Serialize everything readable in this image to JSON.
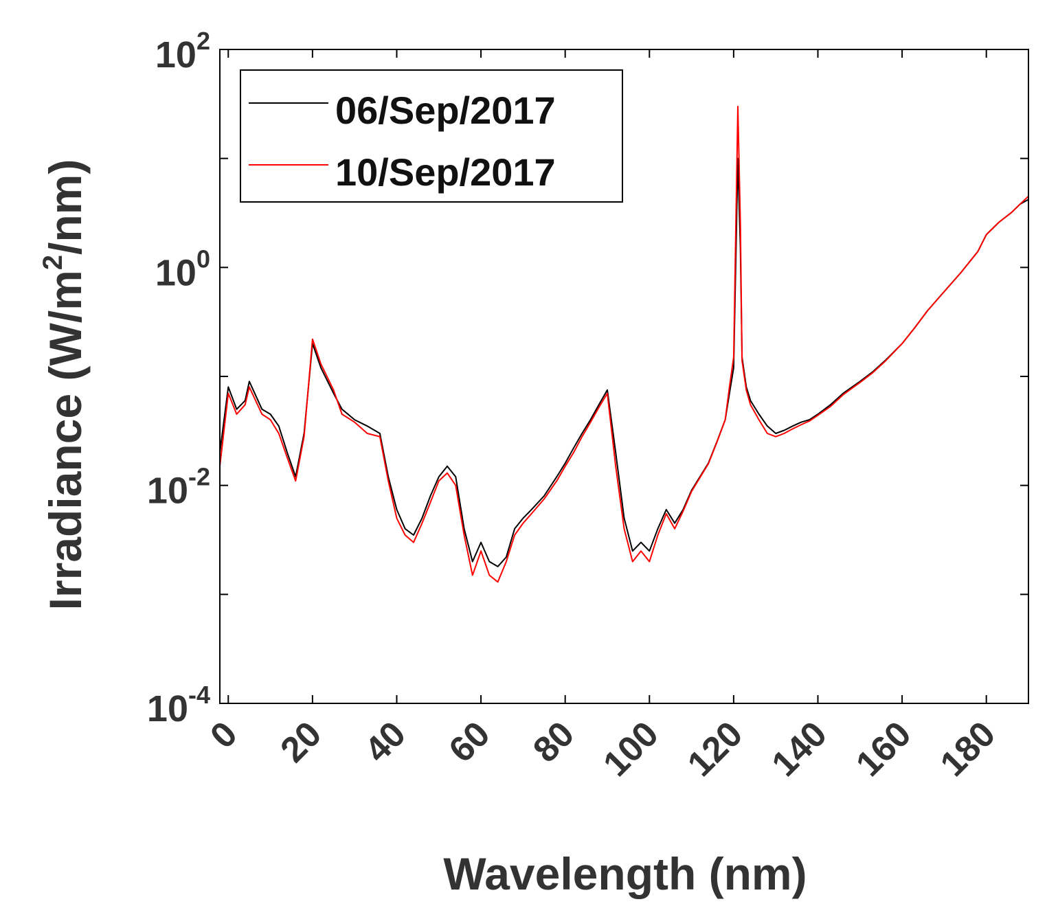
{
  "chart_data": {
    "type": "line",
    "title": "",
    "xlabel": "Wavelength (nm)",
    "ylabel_parts": {
      "pre": "Irradiance (W/m",
      "sup": "2",
      "post": "/nm)"
    },
    "xlim": [
      -2,
      190
    ],
    "ylim_exp": [
      -4,
      2
    ],
    "y_scale": "log",
    "xticks": [
      0,
      20,
      40,
      60,
      80,
      100,
      120,
      140,
      160,
      180
    ],
    "yticks": [
      {
        "exp": -4,
        "base": "10",
        "sup": "-4"
      },
      {
        "exp": -2,
        "base": "10",
        "sup": "-2"
      },
      {
        "exp": 0,
        "base": "10",
        "sup": "0"
      },
      {
        "exp": 2,
        "base": "10",
        "sup": "2"
      }
    ],
    "legend_position": "top-left",
    "series": [
      {
        "name": "06/Sep/2017",
        "color": "#000000",
        "x": [
          -2,
          0,
          2,
          4,
          5,
          8,
          10,
          12,
          14,
          16,
          18,
          20,
          22,
          25,
          27,
          30,
          33,
          36,
          38,
          40,
          42,
          44,
          46,
          48,
          50,
          52,
          54,
          56,
          58,
          60,
          62,
          64,
          66,
          68,
          70,
          72,
          75,
          78,
          80,
          82,
          84,
          86,
          88,
          90,
          92,
          94,
          96,
          98,
          100,
          102,
          104,
          106,
          108,
          110,
          112,
          114,
          116,
          118,
          119,
          120,
          121,
          121.6,
          122,
          123,
          124,
          126,
          128,
          130,
          132,
          134,
          136,
          138,
          140,
          143,
          146,
          150,
          153,
          156,
          160,
          163,
          166,
          170,
          174,
          178,
          180,
          183,
          186,
          188,
          190
        ],
        "y": [
          0.02,
          0.08,
          0.05,
          0.06,
          0.09,
          0.05,
          0.045,
          0.035,
          0.02,
          0.012,
          0.03,
          0.2,
          0.12,
          0.07,
          0.05,
          0.04,
          0.035,
          0.03,
          0.012,
          0.006,
          0.004,
          0.0035,
          0.005,
          0.008,
          0.012,
          0.015,
          0.012,
          0.004,
          0.002,
          0.003,
          0.002,
          0.0018,
          0.0022,
          0.004,
          0.005,
          0.006,
          0.008,
          0.012,
          0.016,
          0.022,
          0.03,
          0.04,
          0.055,
          0.075,
          0.02,
          0.005,
          0.0025,
          0.003,
          0.0025,
          0.004,
          0.006,
          0.0045,
          0.006,
          0.009,
          0.012,
          0.016,
          0.025,
          0.04,
          0.07,
          0.12,
          10,
          1.5,
          0.15,
          0.08,
          0.06,
          0.045,
          0.035,
          0.03,
          0.032,
          0.035,
          0.038,
          0.04,
          0.045,
          0.055,
          0.07,
          0.09,
          0.11,
          0.14,
          0.2,
          0.28,
          0.4,
          0.6,
          0.9,
          1.4,
          2.0,
          2.6,
          3.2,
          3.8,
          4.2
        ]
      },
      {
        "name": "10/Sep/2017",
        "color": "#ff0000",
        "x": [
          -2,
          0,
          2,
          4,
          5,
          8,
          10,
          12,
          14,
          16,
          18,
          20,
          22,
          25,
          27,
          30,
          33,
          36,
          38,
          40,
          42,
          44,
          46,
          48,
          50,
          52,
          54,
          56,
          58,
          60,
          62,
          64,
          66,
          68,
          70,
          72,
          75,
          78,
          80,
          82,
          84,
          86,
          88,
          90,
          92,
          94,
          96,
          98,
          100,
          102,
          104,
          106,
          108,
          110,
          112,
          114,
          116,
          118,
          119,
          120,
          121,
          121.6,
          122,
          123,
          124,
          126,
          128,
          130,
          132,
          134,
          136,
          138,
          140,
          143,
          146,
          150,
          153,
          156,
          160,
          163,
          166,
          170,
          174,
          178,
          180,
          183,
          186,
          188,
          190
        ],
        "y": [
          0.015,
          0.07,
          0.045,
          0.055,
          0.08,
          0.045,
          0.04,
          0.03,
          0.018,
          0.011,
          0.028,
          0.22,
          0.13,
          0.075,
          0.045,
          0.038,
          0.03,
          0.028,
          0.011,
          0.005,
          0.0035,
          0.003,
          0.0045,
          0.007,
          0.011,
          0.013,
          0.01,
          0.0035,
          0.0015,
          0.0025,
          0.0015,
          0.0013,
          0.002,
          0.0035,
          0.0045,
          0.0055,
          0.0075,
          0.011,
          0.015,
          0.02,
          0.028,
          0.038,
          0.052,
          0.07,
          0.015,
          0.004,
          0.002,
          0.0025,
          0.002,
          0.0035,
          0.0055,
          0.004,
          0.0058,
          0.0088,
          0.0118,
          0.0158,
          0.0248,
          0.04,
          0.08,
          0.15,
          30,
          2.5,
          0.14,
          0.075,
          0.055,
          0.04,
          0.03,
          0.028,
          0.03,
          0.033,
          0.036,
          0.039,
          0.044,
          0.053,
          0.068,
          0.088,
          0.108,
          0.138,
          0.2,
          0.28,
          0.4,
          0.6,
          0.9,
          1.4,
          2.0,
          2.6,
          3.2,
          3.8,
          4.5
        ]
      }
    ]
  }
}
